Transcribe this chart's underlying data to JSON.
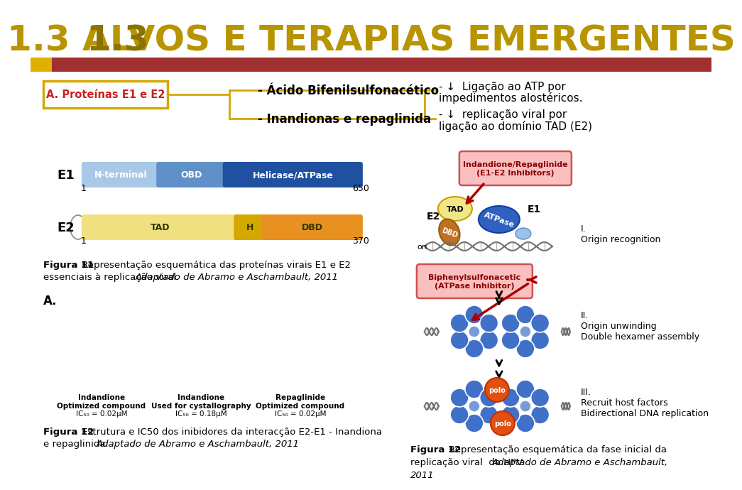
{
  "title_13": "1.3",
  "title_rest": " ALVOS E TERAPIAS EMERGENTES",
  "title_color_13": "#8B7300",
  "title_color_rest": "#B89400",
  "title_fontsize": 36,
  "bar_color": "#A03030",
  "bar_yellow": "#E0B000",
  "bg_color": "#FFFFFF",
  "box_A_label": "A. Proteínas E1 e E2",
  "box_A_color": "#C82020",
  "box_A_border": "#D4A800",
  "line1_text": "- Ácido Bifenilsulfonacético",
  "line2_text": "- Inandionas e repaglinida",
  "right1a": "- ↓  Ligação ao ATP por",
  "right1b": "impedimentos alostéricos.",
  "right2a": "- ↓  replicação viral por",
  "right2b": "ligação ao domínio TAD (E2)",
  "E1_label": "E1",
  "E1_segments": [
    "N-terminal",
    "OBD",
    "Helicase/ATPase"
  ],
  "E1_seg_colors": [
    "#A8C8E8",
    "#6090C8",
    "#2050A0"
  ],
  "E1_num_left": "1",
  "E1_num_right": "650",
  "E2_label": "E2",
  "E2_segments": [
    "TAD",
    "H",
    "DBD"
  ],
  "E2_seg_colors": [
    "#F0E080",
    "#D4A800",
    "#E89020"
  ],
  "E2_num_left": "1",
  "E2_num_right": "370",
  "fig11_bold": "Figura 11",
  "fig11_text": " Representação esquemática das proteínas virais E1 e E2\nessenciais à replicação viral. ",
  "fig11_italic": "Adaptado de Abramo e Aschambault, 2011",
  "A_label": "A.",
  "chem1_title": "Indandione\nOptimized compound",
  "chem1_ic": "IC₅₀ = 0.02μM",
  "chem2_title": "Indandione\nUsed for cystallography",
  "chem2_ic": "IC₅₀ = 0.18μM",
  "chem3_title": "Repaglinide\nOptimized compound",
  "chem3_ic": "IC₅₀ = 0.02μM",
  "fig12_bold": "Figura 12",
  "fig12_text_left": " Estrutura e IC50 dos inibidores da interacção E2-E1 - Inandiona\ne repaglinida. ",
  "fig12_italic_left": "Adaptado de Abramo e Aschambault, 2011",
  "pink_box_text": "Indandione/Repaglinide\n(E1-E2 Inhibitors)",
  "blue_box_text": "Biphenylsulfonacetic\n(ATPase Inhibitor)",
  "right_I": "I.\nOrigin recognition",
  "right_II": "II.\nOrigin unwinding\nDouble hexamer assembly",
  "right_III": "III.\nRecruit host factors\nBidirectional DNA replication",
  "fig12_bold_r": "Figura 12",
  "fig12_text_r1": " Representação esquemática da fase inicial da",
  "fig12_text_r2": "replicação viral  do HPV. ",
  "fig12_italic_r": "Adaptado de Abramo e Aschambault,",
  "fig12_italic_r2": "2011"
}
